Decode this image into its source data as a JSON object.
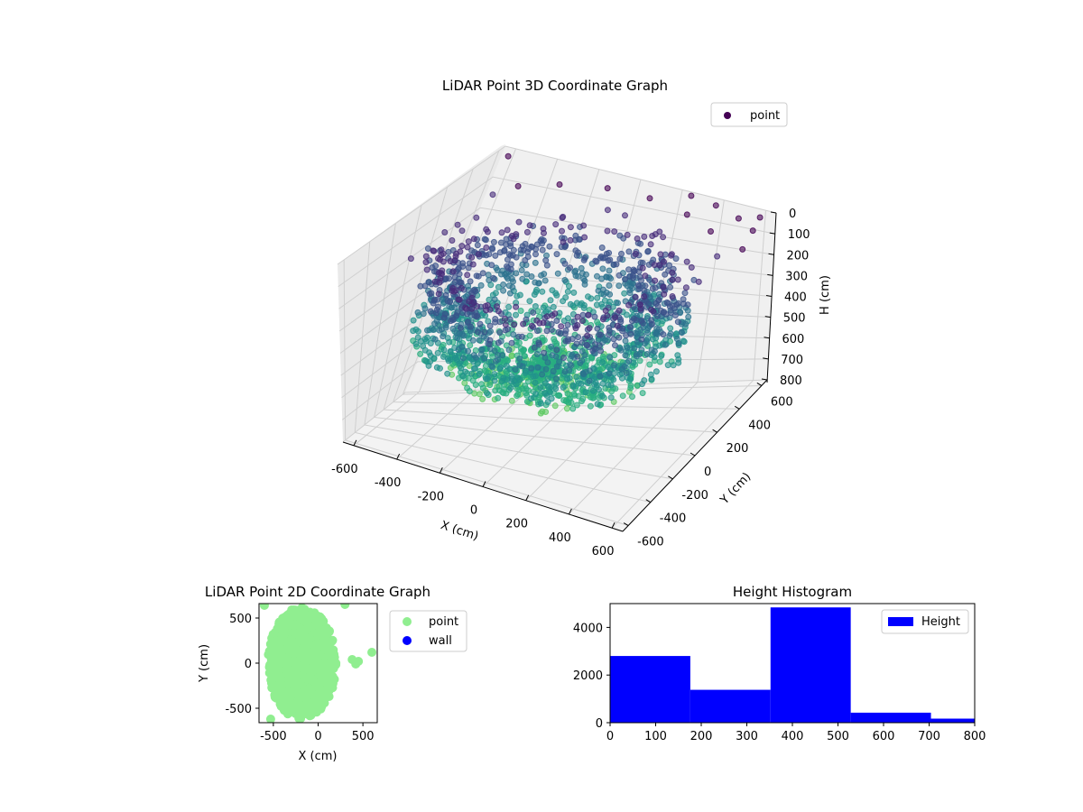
{
  "chart_data": [
    {
      "type": "scatter",
      "projection": "3d",
      "title": "LiDAR Point 3D Coordinate Graph",
      "xlabel": "X (cm)",
      "ylabel": "Y (cm)",
      "zlabel": "H (cm)",
      "xlim": [
        -650,
        650
      ],
      "ylim": [
        -650,
        650
      ],
      "zlim": [
        800,
        0
      ],
      "x_ticks": [
        "-600",
        "-400",
        "-200",
        "0",
        "200",
        "400",
        "600"
      ],
      "y_ticks": [
        "-600",
        "-400",
        "-200",
        "0",
        "200",
        "400",
        "600"
      ],
      "z_ticks": [
        "0",
        "100",
        "200",
        "300",
        "400",
        "500",
        "600",
        "700",
        "800"
      ],
      "z_inverted": true,
      "colormap": "viridis",
      "grid": true,
      "legend": {
        "position": "top-right",
        "entries": [
          "point"
        ]
      },
      "series": [
        {
          "name": "point",
          "description_points": "ring/bowl of points, radius about 350-550 cm, heights about 100-550 cm, plus sparse outliers near top",
          "sample_points": [
            [
              -520,
              380,
              60
            ],
            [
              -450,
              450,
              40
            ],
            [
              -300,
              520,
              30
            ],
            [
              -100,
              560,
              20
            ],
            [
              100,
              560,
              20
            ],
            [
              300,
              520,
              30
            ],
            [
              450,
              450,
              40
            ],
            [
              560,
              300,
              60
            ],
            [
              580,
              100,
              80
            ],
            [
              560,
              -100,
              60
            ],
            [
              -560,
              200,
              120
            ],
            [
              -580,
              0,
              150
            ],
            [
              -560,
              -200,
              120
            ],
            [
              600,
              600,
              10
            ],
            [
              -600,
              600,
              10
            ],
            [
              620,
              500,
              20
            ],
            [
              650,
              350,
              30
            ],
            [
              520,
              560,
              15
            ],
            [
              380,
              620,
              15
            ],
            [
              250,
              640,
              10
            ]
          ]
        }
      ]
    },
    {
      "type": "scatter",
      "title": "LiDAR Point 2D Coordinate Graph",
      "xlabel": "X (cm)",
      "ylabel": "Y (cm)",
      "xlim": [
        -660,
        660
      ],
      "ylim": [
        -660,
        660
      ],
      "x_ticks": [
        "-500",
        "0",
        "500"
      ],
      "y_ticks": [
        "-500",
        "0",
        "500"
      ],
      "legend": {
        "position": "outside-right",
        "entries": [
          "point",
          "wall"
        ]
      },
      "series": [
        {
          "name": "point",
          "color": "#90ee90"
        },
        {
          "name": "wall",
          "color": "#0000ff"
        }
      ]
    },
    {
      "type": "bar",
      "subtype": "histogram",
      "title": "Height Histogram",
      "xlim": [
        0,
        800
      ],
      "ylim": [
        0,
        5000
      ],
      "x_ticks": [
        "0",
        "100",
        "200",
        "300",
        "400",
        "500",
        "600",
        "700",
        "800"
      ],
      "y_ticks": [
        "0",
        "2000",
        "4000"
      ],
      "bins": [
        [
          0,
          176
        ],
        [
          176,
          352
        ],
        [
          352,
          528
        ],
        [
          528,
          704
        ],
        [
          704,
          800
        ]
      ],
      "values": [
        2800,
        1380,
        4840,
        420,
        170
      ],
      "color": "#0000ff",
      "legend": {
        "position": "top-right",
        "entries": [
          "Height"
        ]
      }
    }
  ]
}
